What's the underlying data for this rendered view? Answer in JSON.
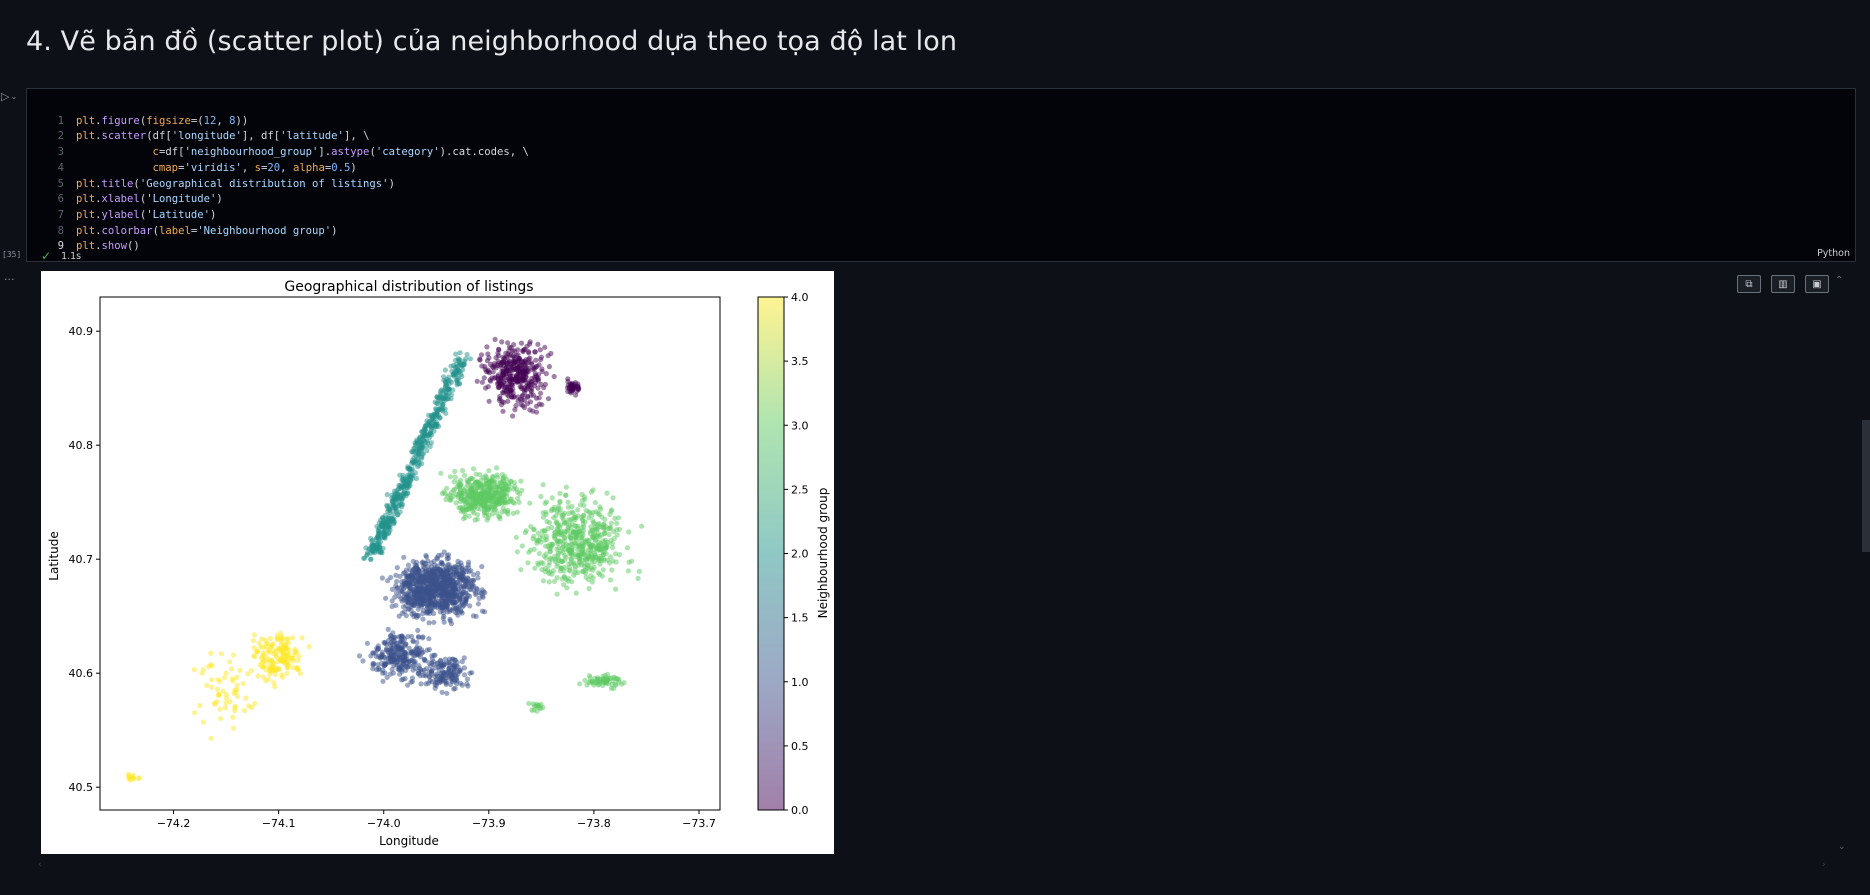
{
  "heading": "4. Vẽ bản đồ (scatter plot) của neighborhood dựa theo tọa độ lat lon",
  "cell": {
    "exec_count": "[35]",
    "status_time": "1.1s",
    "language": "Python"
  },
  "output": {
    "more_label": "..."
  },
  "icons": {
    "run": "run-cell-icon",
    "check": "check-icon",
    "copy": "copy-icon",
    "chart": "chart-icon",
    "save": "save-icon"
  },
  "chart_data": {
    "type": "scatter",
    "title": "Geographical distribution of listings",
    "xlabel": "Longitude",
    "ylabel": "Latitude",
    "xlim": [
      -74.27,
      -73.68
    ],
    "ylim": [
      40.48,
      40.93
    ],
    "xticks": [
      -74.2,
      -74.1,
      -74.0,
      -73.9,
      -73.8,
      -73.7
    ],
    "xtick_labels": [
      "−74.2",
      "−74.1",
      "−74.0",
      "−73.9",
      "−73.8",
      "−73.7"
    ],
    "yticks": [
      40.5,
      40.6,
      40.7,
      40.8,
      40.9
    ],
    "ytick_labels": [
      "40.5",
      "40.6",
      "40.7",
      "40.8",
      "40.9"
    ],
    "colormap": "viridis",
    "alpha": 0.5,
    "colorbar": {
      "label": "Neighbourhood group",
      "range": [
        0.0,
        4.0
      ],
      "ticks": [
        0.0,
        0.5,
        1.0,
        1.5,
        2.0,
        2.5,
        3.0,
        3.5,
        4.0
      ],
      "tick_labels": [
        "0.0",
        "0.5",
        "1.0",
        "1.5",
        "2.0",
        "2.5",
        "3.0",
        "3.5",
        "4.0"
      ]
    },
    "series": [
      {
        "code": 0,
        "color": "#440154",
        "lon_range": [
          -73.93,
          -73.78
        ],
        "lat_range": [
          40.8,
          40.91
        ]
      },
      {
        "code": 1,
        "color": "#3b528b",
        "lon_range": [
          -74.04,
          -73.86
        ],
        "lat_range": [
          40.57,
          40.74
        ]
      },
      {
        "code": 2,
        "color": "#21918c",
        "lon_range": [
          -74.02,
          -73.91
        ],
        "lat_range": [
          40.7,
          40.88
        ]
      },
      {
        "code": 3,
        "color": "#5ec962",
        "lon_range": [
          -73.96,
          -73.71
        ],
        "lat_range": [
          40.56,
          40.81
        ]
      },
      {
        "code": 4,
        "color": "#fde725",
        "lon_range": [
          -74.25,
          -74.06
        ],
        "lat_range": [
          40.5,
          40.65
        ]
      }
    ]
  }
}
